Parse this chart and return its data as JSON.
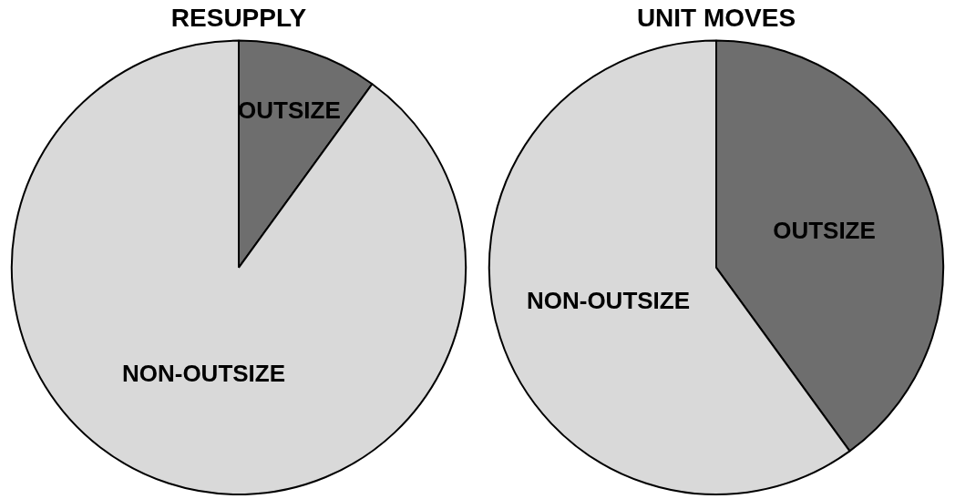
{
  "chart_data": [
    {
      "type": "pie",
      "title": "RESUPPLY",
      "categories": [
        "OUTSIZE",
        "NON-OUTSIZE"
      ],
      "values": [
        10,
        90
      ],
      "colors": [
        "#6e6e6e",
        "#d9d9d9"
      ],
      "legend": false
    },
    {
      "type": "pie",
      "title": "UNIT MOVES",
      "categories": [
        "OUTSIZE",
        "NON-OUTSIZE"
      ],
      "values": [
        40,
        60
      ],
      "colors": [
        "#6e6e6e",
        "#d9d9d9"
      ],
      "legend": false
    }
  ]
}
